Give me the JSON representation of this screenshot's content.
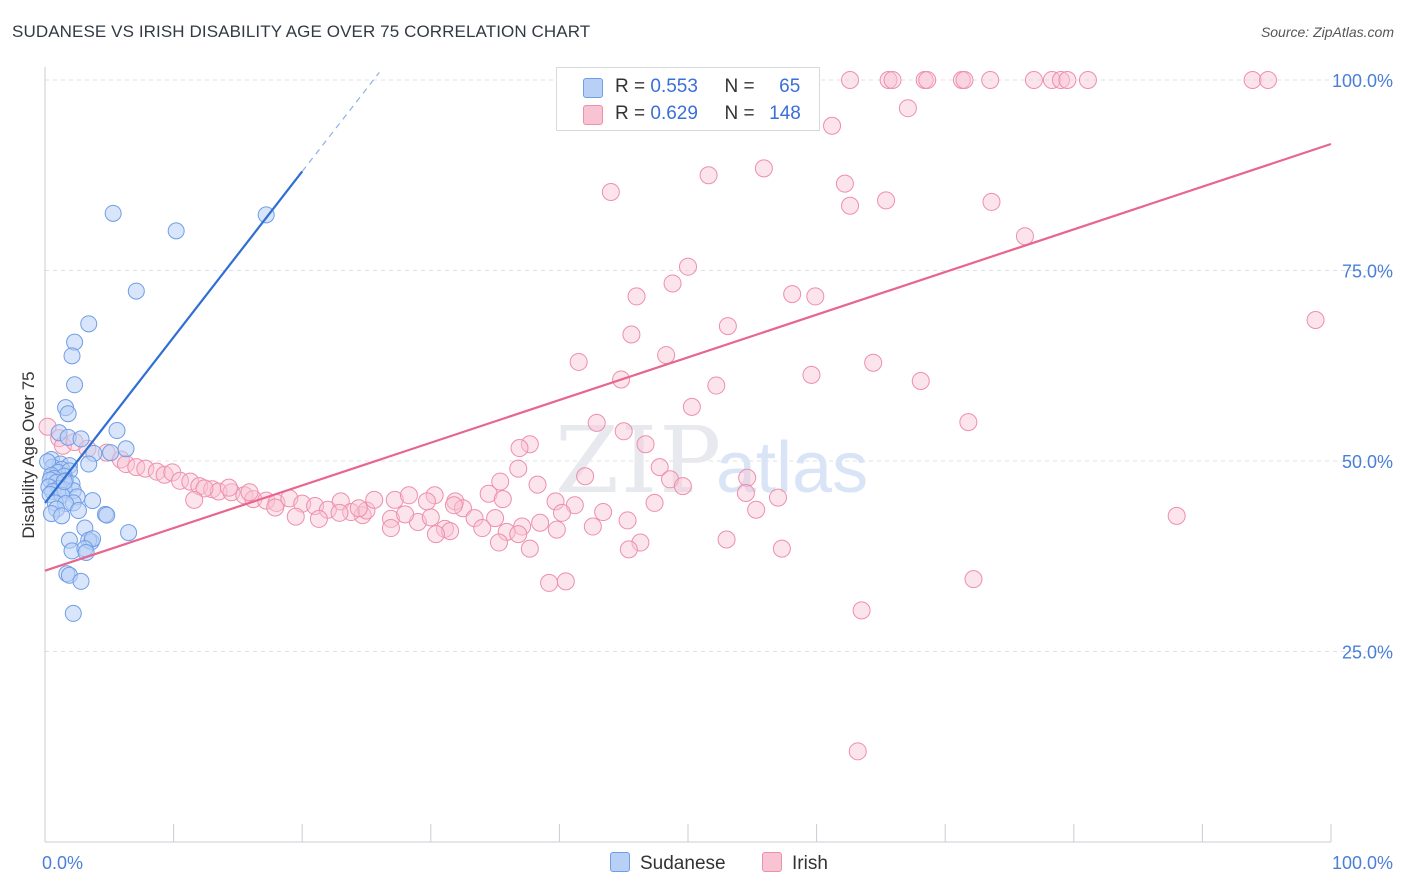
{
  "title": "SUDANESE VS IRISH DISABILITY AGE OVER 75 CORRELATION CHART",
  "source": "Source: ZipAtlas.com",
  "watermark": {
    "zip": "ZIP",
    "atlas": "atlas"
  },
  "legend_top": [
    {
      "r_label": "R =",
      "r_value": "0.553",
      "n_label": "N =",
      "n_value": "65"
    },
    {
      "r_label": "R =",
      "r_value": "0.629",
      "n_label": "N =",
      "n_value": "148"
    }
  ],
  "colors": {
    "sudanese_fill": "#b8d0f5",
    "sudanese_stroke": "#6f9de6",
    "sudanese_line": "#2f6fd4",
    "irish_fill": "#f8c4d4",
    "irish_stroke": "#ee8fab",
    "irish_line": "#e8668e",
    "tick_label": "#4a7fd9",
    "grid": "#dde0e6"
  },
  "chart_data": {
    "type": "scatter",
    "title": "SUDANESE VS IRISH DISABILITY AGE OVER 75 CORRELATION CHART",
    "xlabel": "",
    "ylabel": "Disability Age Over 75",
    "xlim": [
      0,
      100
    ],
    "ylim": [
      0,
      103
    ],
    "x_tick_labels": [
      "0.0%",
      "100.0%"
    ],
    "y_ticks": [
      25,
      50,
      75,
      100
    ],
    "y_tick_labels": [
      "25.0%",
      "50.0%",
      "75.0%",
      "100.0%"
    ],
    "legend": [
      "Sudanese",
      "Irish"
    ],
    "series": [
      {
        "name": "Sudanese",
        "r": 0.553,
        "n": 65,
        "trend": {
          "x0": 0,
          "y0": 44.5,
          "x1": 20,
          "y1": 88,
          "dash_x1": 26,
          "dash_y1": 101
        },
        "points": [
          [
            5.3,
            82.5
          ],
          [
            10.2,
            80.2
          ],
          [
            17.2,
            82.3
          ],
          [
            7.1,
            72.3
          ],
          [
            3.4,
            68.0
          ],
          [
            2.3,
            65.6
          ],
          [
            2.1,
            63.8
          ],
          [
            2.3,
            60.0
          ],
          [
            1.6,
            57.0
          ],
          [
            1.8,
            56.2
          ],
          [
            5.6,
            54.0
          ],
          [
            1.1,
            53.7
          ],
          [
            1.8,
            53.1
          ],
          [
            2.8,
            52.9
          ],
          [
            6.3,
            51.6
          ],
          [
            5.1,
            51.1
          ],
          [
            3.8,
            51.0
          ],
          [
            0.5,
            50.2
          ],
          [
            1.2,
            49.6
          ],
          [
            1.9,
            49.4
          ],
          [
            0.6,
            49.2
          ],
          [
            1.3,
            48.9
          ],
          [
            3.4,
            49.6
          ],
          [
            0.2,
            49.9
          ],
          [
            1.0,
            48.5
          ],
          [
            1.9,
            48.7
          ],
          [
            0.5,
            48.1
          ],
          [
            1.5,
            48.0
          ],
          [
            0.7,
            47.7
          ],
          [
            1.6,
            47.4
          ],
          [
            0.4,
            47.5
          ],
          [
            0.9,
            47.2
          ],
          [
            2.1,
            47.0
          ],
          [
            0.3,
            46.6
          ],
          [
            1.1,
            46.4
          ],
          [
            0.6,
            46.0
          ],
          [
            1.5,
            46.2
          ],
          [
            2.2,
            46.1
          ],
          [
            0.4,
            45.6
          ],
          [
            1.3,
            45.5
          ],
          [
            2.5,
            45.3
          ],
          [
            3.7,
            44.8
          ],
          [
            0.8,
            44.5
          ],
          [
            2.2,
            44.5
          ],
          [
            1.6,
            44.4
          ],
          [
            0.9,
            43.7
          ],
          [
            2.6,
            43.5
          ],
          [
            0.5,
            43.1
          ],
          [
            1.3,
            42.8
          ],
          [
            4.7,
            43.0
          ],
          [
            4.8,
            42.9
          ],
          [
            3.1,
            41.2
          ],
          [
            6.5,
            40.6
          ],
          [
            1.9,
            39.6
          ],
          [
            3.6,
            39.4
          ],
          [
            3.4,
            39.6
          ],
          [
            3.7,
            39.8
          ],
          [
            2.1,
            38.2
          ],
          [
            3.1,
            38.5
          ],
          [
            3.2,
            38.0
          ],
          [
            1.7,
            35.2
          ],
          [
            1.9,
            35.0
          ],
          [
            2.8,
            34.2
          ],
          [
            2.2,
            30.0
          ],
          [
            1.5,
            47.3
          ]
        ]
      },
      {
        "name": "Irish",
        "r": 0.629,
        "n": 148,
        "trend": {
          "x0": 0,
          "y0": 35.6,
          "x1": 100,
          "y1": 91.6
        },
        "points": [
          [
            52.3,
            100
          ],
          [
            52.7,
            100
          ],
          [
            62.6,
            100
          ],
          [
            65.6,
            100
          ],
          [
            65.9,
            100
          ],
          [
            68.4,
            100
          ],
          [
            68.6,
            100
          ],
          [
            71.3,
            100
          ],
          [
            71.5,
            100
          ],
          [
            73.5,
            100
          ],
          [
            76.9,
            100
          ],
          [
            78.3,
            100
          ],
          [
            79.0,
            100
          ],
          [
            79.5,
            100
          ],
          [
            81.1,
            100
          ],
          [
            93.9,
            100
          ],
          [
            95.1,
            100
          ],
          [
            67.1,
            96.3
          ],
          [
            61.2,
            94.0
          ],
          [
            51.6,
            87.5
          ],
          [
            55.9,
            88.4
          ],
          [
            62.2,
            86.4
          ],
          [
            65.4,
            84.2
          ],
          [
            73.6,
            84.0
          ],
          [
            62.6,
            83.5
          ],
          [
            44.0,
            85.3
          ],
          [
            76.2,
            79.5
          ],
          [
            50.0,
            75.5
          ],
          [
            48.8,
            73.3
          ],
          [
            46.0,
            71.6
          ],
          [
            58.1,
            71.9
          ],
          [
            59.9,
            71.6
          ],
          [
            53.1,
            67.7
          ],
          [
            45.6,
            66.6
          ],
          [
            48.3,
            63.9
          ],
          [
            64.4,
            62.9
          ],
          [
            41.5,
            63.0
          ],
          [
            59.6,
            61.3
          ],
          [
            44.8,
            60.7
          ],
          [
            52.2,
            59.9
          ],
          [
            68.1,
            60.5
          ],
          [
            98.8,
            68.5
          ],
          [
            50.3,
            57.1
          ],
          [
            71.8,
            55.1
          ],
          [
            42.9,
            55.0
          ],
          [
            45.0,
            53.9
          ],
          [
            46.7,
            52.2
          ],
          [
            37.7,
            52.2
          ],
          [
            47.8,
            49.2
          ],
          [
            36.8,
            49.0
          ],
          [
            38.3,
            46.9
          ],
          [
            42.0,
            48.0
          ],
          [
            48.6,
            47.6
          ],
          [
            54.6,
            47.8
          ],
          [
            49.6,
            46.7
          ],
          [
            54.5,
            45.8
          ],
          [
            57.0,
            45.2
          ],
          [
            30.3,
            45.5
          ],
          [
            34.5,
            45.7
          ],
          [
            31.9,
            44.7
          ],
          [
            35.6,
            45.0
          ],
          [
            39.7,
            44.7
          ],
          [
            41.2,
            44.2
          ],
          [
            47.4,
            44.5
          ],
          [
            40.2,
            43.2
          ],
          [
            43.4,
            43.3
          ],
          [
            55.3,
            43.6
          ],
          [
            32.5,
            43.8
          ],
          [
            33.4,
            42.5
          ],
          [
            35.0,
            42.5
          ],
          [
            26.9,
            42.4
          ],
          [
            24.7,
            42.9
          ],
          [
            29.0,
            42.0
          ],
          [
            28.0,
            43.0
          ],
          [
            31.1,
            41.1
          ],
          [
            38.5,
            41.9
          ],
          [
            45.3,
            42.2
          ],
          [
            34.0,
            41.2
          ],
          [
            37.1,
            41.4
          ],
          [
            42.6,
            41.4
          ],
          [
            31.5,
            40.8
          ],
          [
            30.4,
            40.4
          ],
          [
            35.9,
            40.7
          ],
          [
            26.9,
            41.2
          ],
          [
            30.0,
            42.6
          ],
          [
            39.8,
            41.0
          ],
          [
            53.0,
            39.7
          ],
          [
            46.3,
            39.3
          ],
          [
            57.3,
            38.5
          ],
          [
            35.3,
            39.3
          ],
          [
            36.8,
            40.4
          ],
          [
            37.7,
            38.5
          ],
          [
            45.4,
            38.4
          ],
          [
            88.0,
            42.8
          ],
          [
            40.5,
            34.2
          ],
          [
            39.2,
            34.0
          ],
          [
            72.2,
            34.5
          ],
          [
            63.5,
            30.4
          ],
          [
            63.2,
            11.9
          ],
          [
            0.2,
            54.5
          ],
          [
            1.1,
            53.0
          ],
          [
            1.4,
            52.0
          ],
          [
            2.3,
            52.5
          ],
          [
            3.3,
            51.6
          ],
          [
            4.8,
            51.1
          ],
          [
            5.9,
            50.2
          ],
          [
            6.3,
            49.6
          ],
          [
            7.1,
            49.2
          ],
          [
            7.8,
            49.0
          ],
          [
            8.7,
            48.6
          ],
          [
            9.3,
            48.2
          ],
          [
            9.9,
            48.5
          ],
          [
            10.5,
            47.4
          ],
          [
            11.3,
            47.3
          ],
          [
            12.0,
            46.7
          ],
          [
            13.0,
            46.3
          ],
          [
            13.5,
            46.0
          ],
          [
            14.5,
            45.9
          ],
          [
            15.5,
            45.5
          ],
          [
            16.2,
            45.0
          ],
          [
            17.2,
            44.8
          ],
          [
            18.0,
            44.5
          ],
          [
            19.0,
            45.1
          ],
          [
            20.0,
            44.4
          ],
          [
            21.0,
            44.1
          ],
          [
            22.0,
            43.6
          ],
          [
            23.0,
            44.7
          ],
          [
            23.8,
            43.3
          ],
          [
            12.4,
            46.4
          ],
          [
            11.6,
            44.9
          ],
          [
            14.3,
            46.5
          ],
          [
            15.9,
            45.9
          ],
          [
            17.9,
            43.9
          ],
          [
            19.5,
            42.7
          ],
          [
            21.3,
            42.4
          ],
          [
            22.9,
            43.2
          ],
          [
            25.0,
            43.5
          ],
          [
            27.2,
            44.9
          ],
          [
            28.3,
            45.5
          ],
          [
            29.7,
            44.7
          ],
          [
            31.8,
            44.2
          ],
          [
            25.6,
            44.9
          ],
          [
            24.4,
            43.8
          ],
          [
            35.4,
            47.3
          ],
          [
            36.9,
            51.7
          ]
        ]
      }
    ]
  },
  "legend_bottom": [
    "Sudanese",
    "Irish"
  ]
}
